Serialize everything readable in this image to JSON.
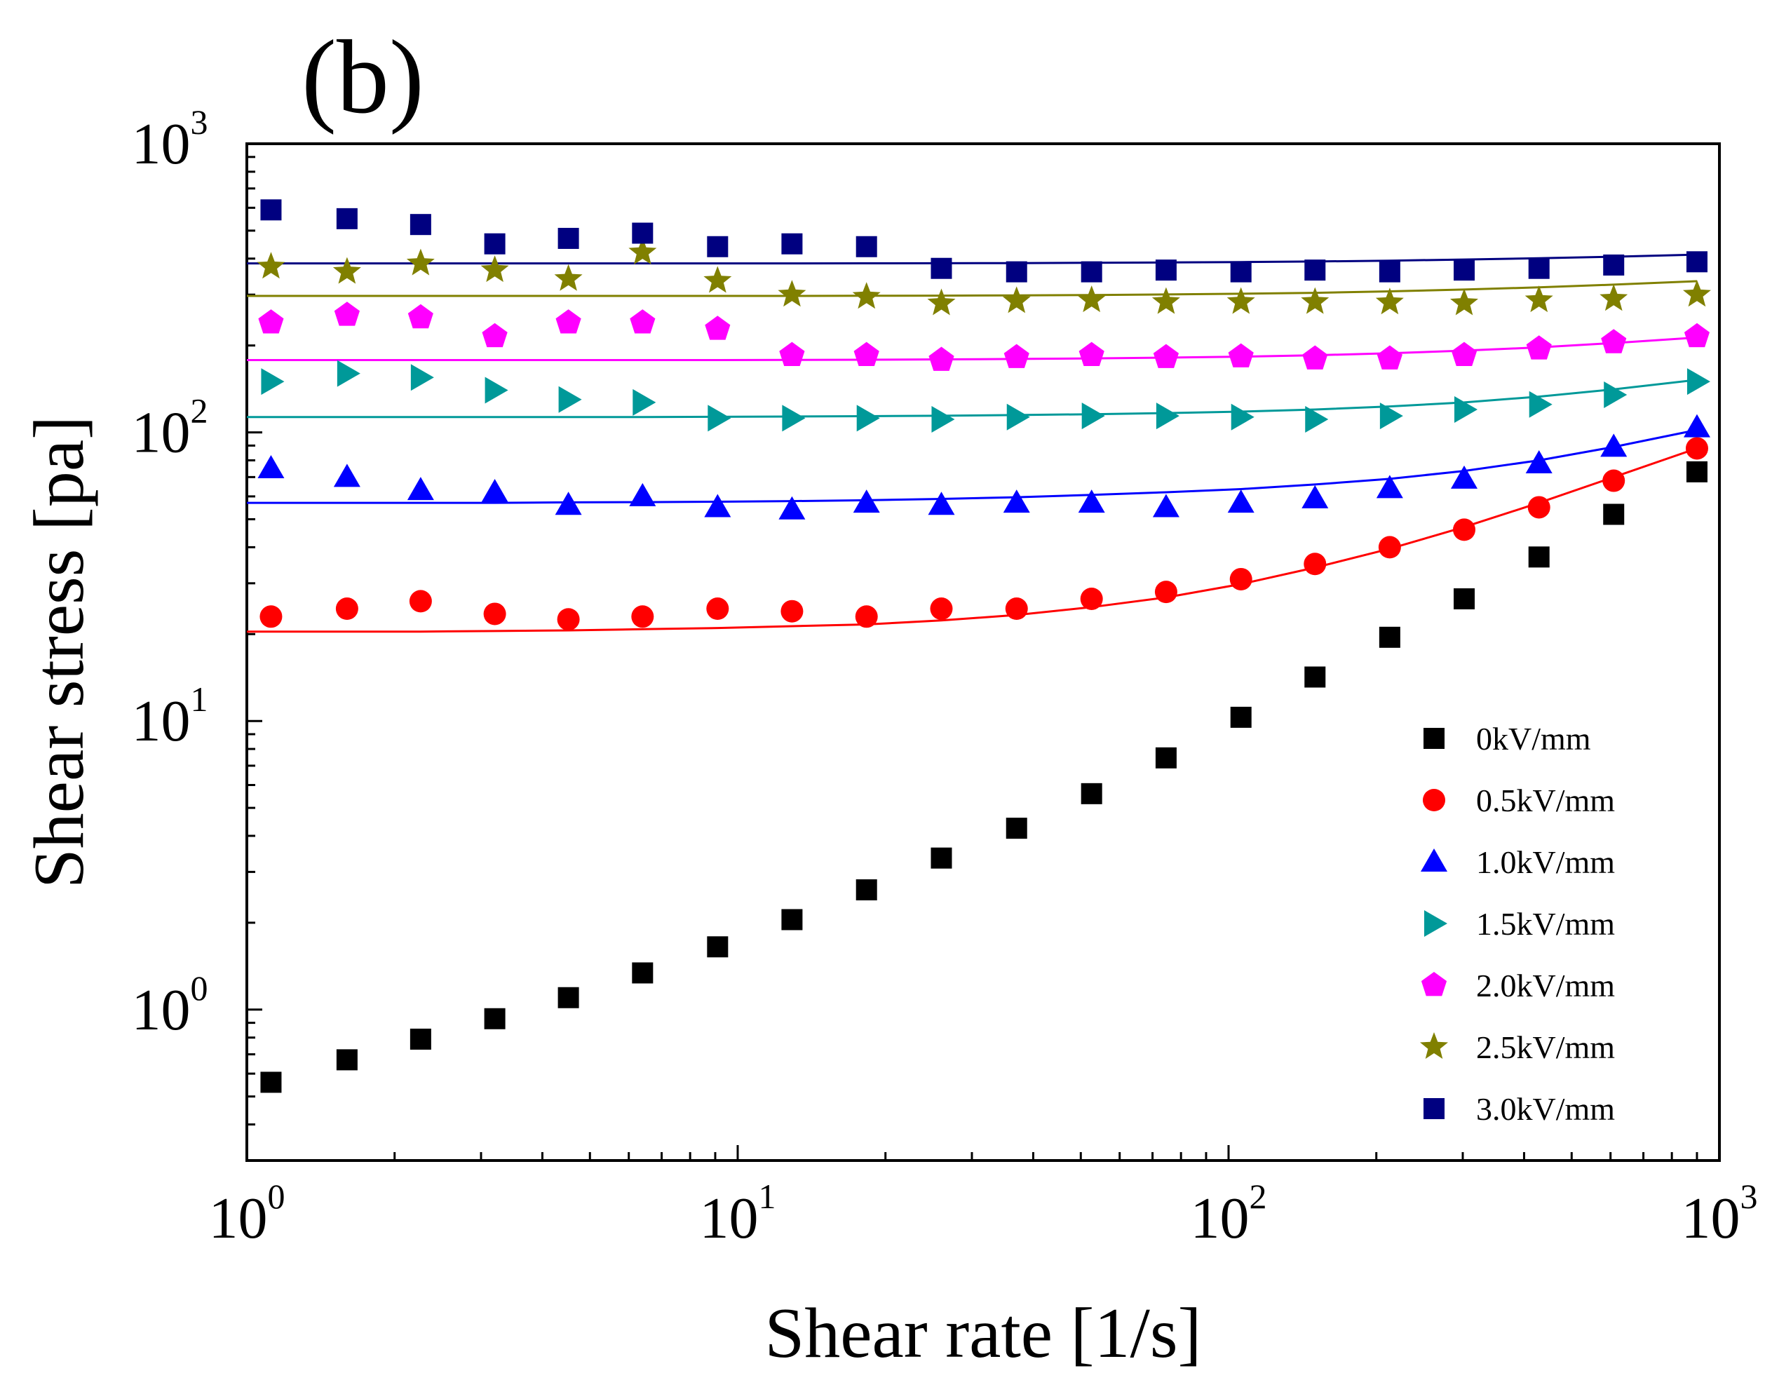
{
  "chart_data": {
    "type": "scatter",
    "panel_label": "(b)",
    "title": "",
    "xlabel": "Shear rate [1/s]",
    "ylabel": "Shear stress [pa]",
    "xscale": "log",
    "yscale": "log",
    "xlim": [
      1,
      1000
    ],
    "ylim": [
      0.3,
      1000
    ],
    "x_ticks": [
      {
        "value": 1,
        "base": "10",
        "exp": "0"
      },
      {
        "value": 10,
        "base": "10",
        "exp": "1"
      },
      {
        "value": 100,
        "base": "10",
        "exp": "2"
      },
      {
        "value": 1000,
        "base": "10",
        "exp": "3"
      }
    ],
    "y_ticks": [
      {
        "value": 1,
        "base": "10",
        "exp": "0"
      },
      {
        "value": 10,
        "base": "10",
        "exp": "1"
      },
      {
        "value": 100,
        "base": "10",
        "exp": "2"
      },
      {
        "value": 1000,
        "base": "10",
        "exp": "3"
      }
    ],
    "legend_position": "bottom-right",
    "x": [
      1.12,
      1.6,
      2.26,
      3.2,
      4.52,
      6.4,
      9.1,
      12.9,
      18.3,
      26.0,
      37.0,
      52.6,
      74.6,
      106,
      150,
      213,
      302,
      429,
      609,
      900
    ],
    "series": [
      {
        "name": "0kV/mm",
        "color": "#000000",
        "marker": "square",
        "values": [
          0.56,
          0.67,
          0.79,
          0.93,
          1.1,
          1.34,
          1.65,
          2.05,
          2.6,
          3.35,
          4.25,
          5.6,
          7.45,
          10.3,
          14.2,
          19.5,
          26.5,
          37.0,
          52.0,
          73.0
        ],
        "fit": null
      },
      {
        "name": "0.5kV/mm",
        "color": "#ff0000",
        "marker": "circle",
        "values": [
          23.0,
          24.5,
          26.0,
          23.5,
          22.5,
          23.0,
          24.5,
          24.0,
          23.0,
          24.5,
          24.5,
          26.5,
          28.0,
          31.0,
          35.0,
          40.0,
          46.0,
          55.0,
          68.0,
          88.0
        ],
        "fit": [
          20.4,
          20.4,
          20.4,
          20.5,
          20.6,
          20.8,
          21.0,
          21.3,
          21.6,
          22.3,
          23.3,
          24.8,
          26.8,
          29.8,
          34.0,
          39.5,
          47.0,
          57.0,
          70.0,
          88.0
        ]
      },
      {
        "name": "1.0kV/mm",
        "color": "#0000ff",
        "marker": "triangle-up",
        "values": [
          75.0,
          70.0,
          63.0,
          62.0,
          56.0,
          60.0,
          55.0,
          54.0,
          57.0,
          56.0,
          57.0,
          57.0,
          55.0,
          57.0,
          59.0,
          64.0,
          69.0,
          78.0,
          89.0,
          104.0
        ],
        "fit": [
          57.0,
          57.0,
          57.0,
          57.0,
          57.2,
          57.3,
          57.5,
          57.8,
          58.2,
          58.8,
          59.6,
          60.7,
          62.0,
          63.6,
          66.0,
          69.0,
          73.5,
          80.0,
          89.0,
          102.0
        ]
      },
      {
        "name": "1.5kV/mm",
        "color": "#009999",
        "marker": "triangle-right",
        "values": [
          150.0,
          160.0,
          155.0,
          140.0,
          130.0,
          127.0,
          112.0,
          112.0,
          112.0,
          111.0,
          113.0,
          114.0,
          114.0,
          113.0,
          111.0,
          114.0,
          120.0,
          125.0,
          135.0,
          150.0
        ],
        "fit": [
          113.0,
          113.0,
          113.0,
          113.0,
          113.0,
          113.0,
          113.2,
          113.5,
          113.8,
          114.2,
          114.8,
          115.6,
          116.6,
          118.0,
          120.0,
          123.0,
          127.0,
          133.0,
          141.0,
          152.0
        ]
      },
      {
        "name": "2.0kV/mm",
        "color": "#ff00ff",
        "marker": "pentagon",
        "values": [
          240.0,
          255.0,
          250.0,
          215.0,
          240.0,
          240.0,
          228.0,
          185.0,
          185.0,
          178.0,
          182.0,
          185.0,
          182.0,
          183.0,
          180.0,
          180.0,
          185.0,
          195.0,
          205.0,
          215.0
        ],
        "fit": [
          178.0,
          178.0,
          178.0,
          178.0,
          178.0,
          178.0,
          178.0,
          178.2,
          178.5,
          179.0,
          179.6,
          180.4,
          181.5,
          183.0,
          185.0,
          188.0,
          192.0,
          197.0,
          204.0,
          213.0
        ]
      },
      {
        "name": "2.5kV/mm",
        "color": "#808000",
        "marker": "star",
        "values": [
          375.0,
          360.0,
          385.0,
          365.0,
          340.0,
          420.0,
          335.0,
          300.0,
          295.0,
          280.0,
          285.0,
          287.0,
          283.0,
          283.0,
          283.0,
          282.0,
          280.0,
          287.0,
          290.0,
          300.0
        ],
        "fit": [
          297.0,
          297.0,
          297.0,
          297.0,
          297.0,
          297.0,
          297.0,
          297.0,
          297.3,
          297.7,
          298.3,
          299.2,
          300.5,
          302.2,
          304.5,
          308.0,
          312.5,
          318.0,
          325.0,
          334.0
        ]
      },
      {
        "name": "3.0kV/mm",
        "color": "#000080",
        "marker": "square",
        "values": [
          590.0,
          550.0,
          525.0,
          450.0,
          470.0,
          490.0,
          440.0,
          450.0,
          440.0,
          370.0,
          360.0,
          360.0,
          365.0,
          360.0,
          365.0,
          360.0,
          365.0,
          370.0,
          380.0,
          390.0
        ],
        "fit": [
          385.0,
          385.0,
          385.0,
          385.0,
          385.0,
          385.0,
          385.0,
          385.0,
          385.2,
          385.5,
          386.0,
          386.8,
          387.8,
          389.2,
          391.0,
          393.5,
          397.0,
          401.0,
          406.0,
          413.0
        ]
      }
    ]
  }
}
